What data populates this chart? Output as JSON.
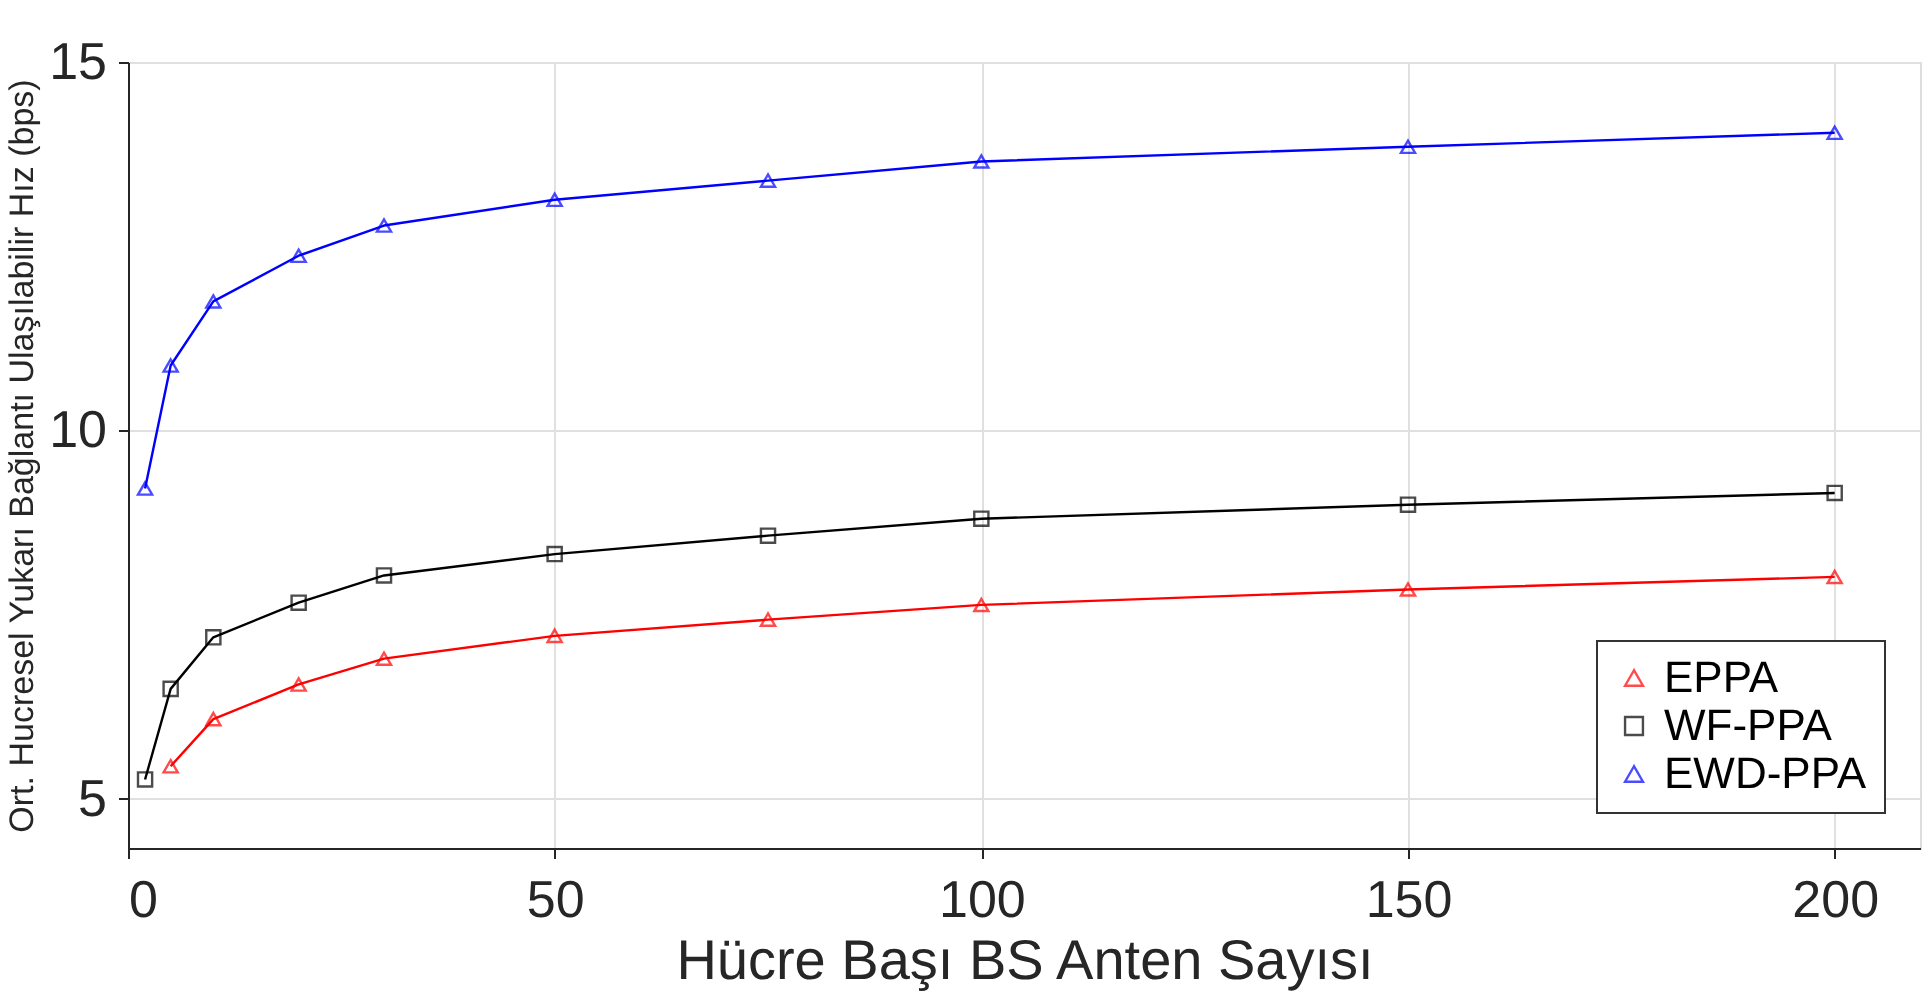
{
  "chart_data": {
    "type": "line",
    "xlabel": "Hücre Başı BS Anten Sayısı",
    "ylabel": "Ort. Hucresel Yukarı Bağlantı Ulaşılabilir Hız (bps)",
    "x": [
      2,
      5,
      10,
      20,
      30,
      50,
      75,
      100,
      150,
      200
    ],
    "xlim": [
      0,
      210
    ],
    "xticks": [
      0,
      50,
      100,
      150,
      200
    ],
    "ylim": [
      4.33,
      15
    ],
    "yticks": [
      5,
      10,
      15
    ],
    "grid": true,
    "legend": "bottom right",
    "line_style": "solid",
    "series": [
      {
        "name": "EPPA",
        "color": "#ff0000",
        "marker": "triangle",
        "values": [
          null,
          5.44,
          6.08,
          6.55,
          6.9,
          7.21,
          7.43,
          7.63,
          7.84,
          8.01
        ]
      },
      {
        "name": "WF-PPA",
        "color": "#000000",
        "marker": "square",
        "values": [
          5.26,
          6.49,
          7.19,
          7.66,
          8.03,
          8.32,
          8.57,
          8.8,
          8.99,
          9.15
        ]
      },
      {
        "name": "EWD-PPA",
        "color": "#0000ff",
        "marker": "triangle",
        "values": [
          9.21,
          10.88,
          11.75,
          12.37,
          12.78,
          13.13,
          13.39,
          13.65,
          13.85,
          14.04
        ]
      }
    ]
  }
}
